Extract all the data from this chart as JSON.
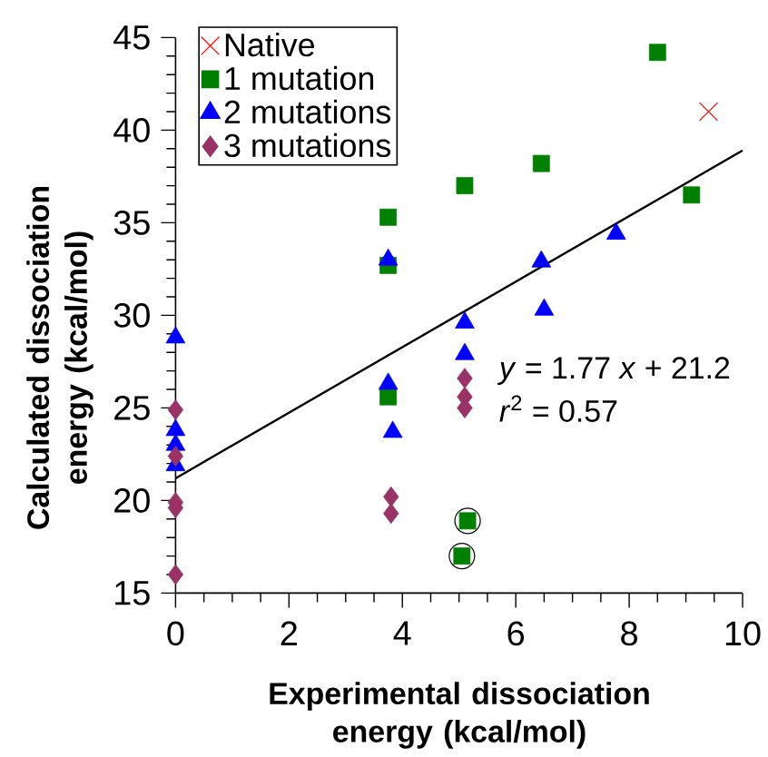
{
  "chart_data": {
    "type": "scatter",
    "xlabel": "Experimental dissociation energy (kcal/mol)",
    "ylabel": "Calculated dissociation energy (kcal/mol)",
    "xlim": [
      0,
      10
    ],
    "ylim": [
      15,
      45
    ],
    "xticks": [
      0,
      2,
      4,
      6,
      8,
      10
    ],
    "yticks": [
      15,
      20,
      25,
      30,
      35,
      40,
      45
    ],
    "legend": "top left",
    "grid": false,
    "series": [
      {
        "name": "Native",
        "marker": "cross",
        "color": "#ff0000",
        "x": [
          9.4
        ],
        "values": [
          41.0
        ]
      },
      {
        "name": "1 mutation",
        "marker": "square",
        "color": "#008000",
        "x": [
          3.75,
          3.75,
          3.75,
          5.1,
          6.45,
          8.5,
          9.1,
          5.15,
          5.05
        ],
        "values": [
          35.3,
          32.7,
          25.6,
          37.0,
          38.2,
          44.2,
          36.5,
          18.9,
          17.0
        ]
      },
      {
        "name": "2 mutations",
        "marker": "triangle",
        "color": "#0000ff",
        "x": [
          0,
          0,
          0,
          0,
          3.75,
          3.75,
          3.83,
          5.1,
          5.1,
          6.45,
          6.5,
          7.77
        ],
        "values": [
          28.8,
          23.8,
          23.0,
          21.9,
          33.0,
          26.3,
          23.7,
          29.6,
          27.9,
          32.9,
          30.3,
          34.4
        ]
      },
      {
        "name": "3 mutations",
        "marker": "diamond",
        "color": "#993366",
        "x": [
          0,
          0,
          0,
          0,
          0,
          3.8,
          3.8,
          5.1,
          5.1,
          5.1
        ],
        "values": [
          24.9,
          22.4,
          19.9,
          19.6,
          16.0,
          20.2,
          19.3,
          26.6,
          25.6,
          25.0
        ]
      },
      {
        "type": "line",
        "color": "#000000",
        "x": [
          0,
          10
        ],
        "values": [
          21.2,
          38.9
        ]
      },
      {
        "type": "scatter",
        "marker": "circle",
        "color": "#000000",
        "x": [
          5.15,
          5.05
        ],
        "values": [
          18.9,
          17.0
        ]
      }
    ],
    "annotations": [
      "*y* = 1.77 *x* + 21.2",
      "*r*$^{2}$ = 0.57"
    ]
  }
}
